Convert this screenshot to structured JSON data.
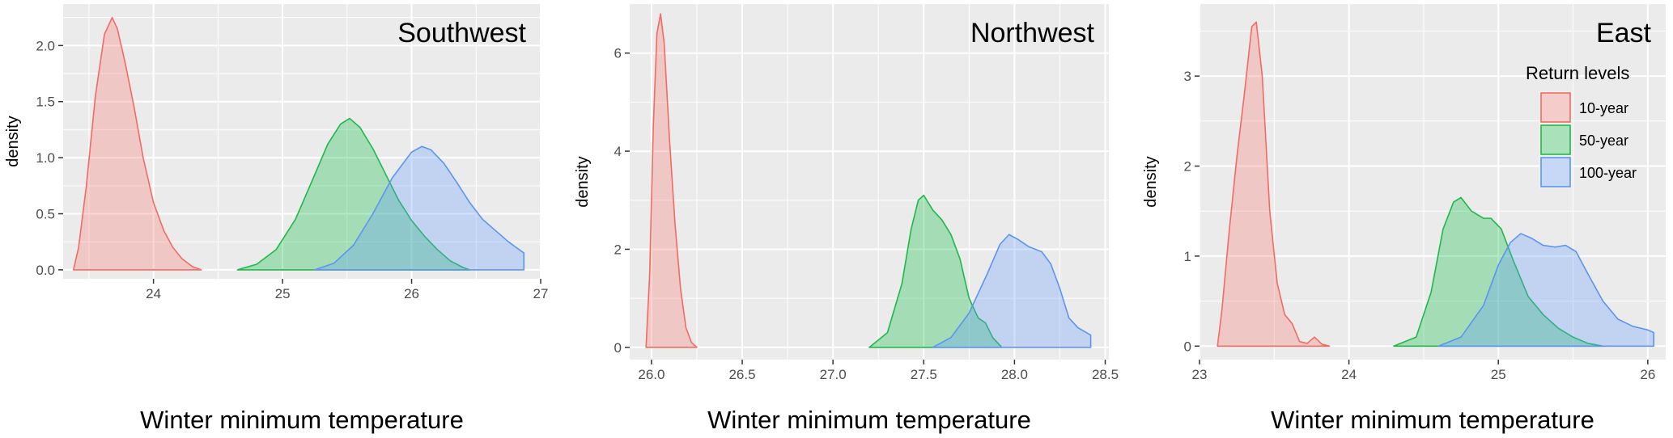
{
  "chart_data": [
    {
      "type": "area",
      "title": "Southwest",
      "xlabel": "Winter minimum temperature",
      "ylabel": "density",
      "xlim": [
        23.3,
        27.0
      ],
      "ylim": [
        -0.08,
        2.37
      ],
      "xticks": [
        24,
        25,
        26,
        27
      ],
      "yticks": [
        0.0,
        0.5,
        1.0,
        1.5,
        2.0
      ],
      "ytick_labels": [
        "0.0",
        "0.5",
        "1.0",
        "1.5",
        "2.0"
      ],
      "grid": true,
      "series": [
        {
          "name": "10-year",
          "x": [
            23.38,
            23.42,
            23.48,
            23.55,
            23.62,
            23.68,
            23.72,
            23.78,
            23.85,
            23.92,
            24.0,
            24.08,
            24.15,
            24.22,
            24.3,
            24.37
          ],
          "y": [
            0.0,
            0.2,
            0.75,
            1.55,
            2.1,
            2.25,
            2.15,
            1.85,
            1.45,
            1.0,
            0.6,
            0.35,
            0.2,
            0.1,
            0.03,
            0.0
          ]
        },
        {
          "name": "50-year",
          "x": [
            24.65,
            24.8,
            24.95,
            25.1,
            25.25,
            25.35,
            25.45,
            25.52,
            25.6,
            25.7,
            25.8,
            25.9,
            26.0,
            26.1,
            26.2,
            26.3,
            26.4,
            26.45
          ],
          "y": [
            0.0,
            0.05,
            0.18,
            0.45,
            0.85,
            1.12,
            1.3,
            1.35,
            1.27,
            1.08,
            0.85,
            0.62,
            0.44,
            0.3,
            0.18,
            0.08,
            0.02,
            0.0
          ]
        },
        {
          "name": "100-year",
          "x": [
            25.25,
            25.4,
            25.55,
            25.7,
            25.85,
            26.0,
            26.08,
            26.15,
            26.25,
            26.35,
            26.45,
            26.55,
            26.65,
            26.75,
            26.87,
            26.87
          ],
          "y": [
            0.0,
            0.06,
            0.22,
            0.5,
            0.82,
            1.05,
            1.1,
            1.07,
            0.95,
            0.78,
            0.6,
            0.45,
            0.35,
            0.25,
            0.15,
            0.0
          ]
        }
      ]
    },
    {
      "type": "area",
      "title": "Northwest",
      "xlabel": "Winter minimum temperature",
      "ylabel": "density",
      "xlim": [
        25.88,
        28.52
      ],
      "ylim": [
        -0.25,
        7.0
      ],
      "xticks": [
        26.0,
        26.5,
        27.0,
        27.5,
        28.0,
        28.5
      ],
      "xtick_labels": [
        "26.0",
        "26.5",
        "27.0",
        "27.5",
        "28.0",
        "28.5"
      ],
      "yticks": [
        0,
        2,
        4,
        6
      ],
      "ytick_labels": [
        "0",
        "2",
        "4",
        "6"
      ],
      "grid": true,
      "series": [
        {
          "name": "10-year",
          "x": [
            25.97,
            25.99,
            26.01,
            26.03,
            26.05,
            26.07,
            26.1,
            26.13,
            26.16,
            26.19,
            26.22,
            26.25
          ],
          "y": [
            0.0,
            1.5,
            4.5,
            6.4,
            6.8,
            6.2,
            4.2,
            2.5,
            1.2,
            0.4,
            0.1,
            0.0
          ]
        },
        {
          "name": "50-year",
          "x": [
            27.2,
            27.3,
            27.38,
            27.43,
            27.47,
            27.5,
            27.55,
            27.6,
            27.65,
            27.7,
            27.75,
            27.8,
            27.84,
            27.88,
            27.93
          ],
          "y": [
            0.0,
            0.3,
            1.3,
            2.4,
            3.0,
            3.1,
            2.8,
            2.6,
            2.3,
            1.8,
            1.0,
            0.6,
            0.5,
            0.2,
            0.0
          ]
        },
        {
          "name": "100-year",
          "x": [
            27.55,
            27.65,
            27.75,
            27.85,
            27.92,
            27.97,
            28.02,
            28.08,
            28.15,
            28.2,
            28.25,
            28.3,
            28.35,
            28.42,
            28.42
          ],
          "y": [
            0.0,
            0.2,
            0.7,
            1.5,
            2.1,
            2.3,
            2.2,
            2.05,
            1.95,
            1.7,
            1.2,
            0.6,
            0.4,
            0.25,
            0.0
          ]
        }
      ]
    },
    {
      "type": "area",
      "title": "East",
      "xlabel": "Winter minimum temperature",
      "ylabel": "density",
      "xlim": [
        23.0,
        26.12
      ],
      "ylim": [
        -0.15,
        3.8
      ],
      "xticks": [
        23,
        24,
        25,
        26
      ],
      "yticks": [
        0,
        1,
        2,
        3
      ],
      "ytick_labels": [
        "0",
        "1",
        "2",
        "3"
      ],
      "grid": true,
      "legend": {
        "title": "Return levels",
        "position": "top-right",
        "entries": [
          "10-year",
          "50-year",
          "100-year"
        ]
      },
      "series": [
        {
          "name": "10-year",
          "x": [
            23.12,
            23.15,
            23.2,
            23.25,
            23.3,
            23.35,
            23.38,
            23.42,
            23.47,
            23.52,
            23.57,
            23.62,
            23.67,
            23.72,
            23.77,
            23.82,
            23.87
          ],
          "y": [
            0.0,
            0.4,
            1.3,
            2.1,
            2.8,
            3.55,
            3.6,
            3.0,
            1.5,
            0.7,
            0.35,
            0.25,
            0.05,
            0.03,
            0.1,
            0.02,
            0.0
          ]
        },
        {
          "name": "50-year",
          "x": [
            24.3,
            24.45,
            24.55,
            24.63,
            24.7,
            24.75,
            24.82,
            24.9,
            24.95,
            25.02,
            25.1,
            25.2,
            25.3,
            25.4,
            25.5,
            25.6,
            25.7
          ],
          "y": [
            0.0,
            0.1,
            0.6,
            1.3,
            1.6,
            1.65,
            1.5,
            1.42,
            1.42,
            1.3,
            0.95,
            0.55,
            0.35,
            0.2,
            0.1,
            0.03,
            0.0
          ]
        },
        {
          "name": "100-year",
          "x": [
            24.6,
            24.75,
            24.9,
            25.0,
            25.08,
            25.15,
            25.22,
            25.3,
            25.38,
            25.45,
            25.52,
            25.6,
            25.7,
            25.8,
            25.9,
            26.0,
            26.04,
            26.04
          ],
          "y": [
            0.0,
            0.1,
            0.45,
            0.9,
            1.15,
            1.25,
            1.2,
            1.12,
            1.1,
            1.12,
            1.05,
            0.8,
            0.5,
            0.3,
            0.22,
            0.18,
            0.15,
            0.0
          ]
        }
      ]
    }
  ],
  "colors": {
    "10-year": {
      "fill": "#f8766d",
      "line": "#f26b63"
    },
    "50-year": {
      "fill": "#00ba38",
      "line": "#1fb849"
    },
    "100-year": {
      "fill": "#619cff",
      "line": "#5b95f0"
    },
    "panel_bg": "#ebebeb",
    "grid": "#ffffff"
  }
}
